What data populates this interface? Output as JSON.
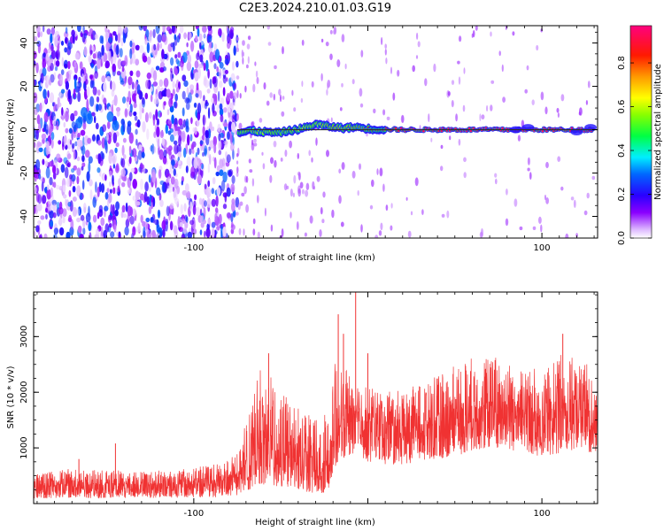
{
  "figure_title": "C2E3.2024.210.01.03.G19",
  "colors": {
    "snr_line": "#f03232",
    "dominant_line": "#303030",
    "axis": "#000000"
  },
  "chart_data": [
    {
      "type": "heatmap",
      "title": "C2E3.2024.210.01.03.G19",
      "xlabel": "Height of straight line (km)",
      "ylabel": "Frequency (Hz)",
      "xlim": [
        -192,
        132
      ],
      "ylim": [
        -50,
        48
      ],
      "xticks": [
        -100,
        0,
        100
      ],
      "xtick_labels": [
        "-100",
        "",
        "100"
      ],
      "yticks": [
        -40,
        -20,
        0,
        20,
        40
      ],
      "ytick_labels": [
        "-40",
        "-20",
        "0",
        "20",
        "40"
      ],
      "grid": false,
      "colorbar": {
        "label": "Normalized spectral amplitude",
        "range": [
          0,
          0.97
        ],
        "ticks": [
          0.0,
          0.2,
          0.4,
          0.6,
          0.8
        ],
        "tick_labels": [
          "0.0",
          "0.2",
          "0.4",
          "0.6",
          "0.8"
        ],
        "colormap": "gist_rainbow_r"
      },
      "dominant_frequency_hz": 0,
      "signal_track": [
        {
          "x": -74,
          "y": -1.5,
          "amp": 0.55
        },
        {
          "x": -68,
          "y": -0.5,
          "amp": 0.7
        },
        {
          "x": -60,
          "y": -1.0,
          "amp": 0.6
        },
        {
          "x": -52,
          "y": -1.5,
          "amp": 0.55
        },
        {
          "x": -45,
          "y": -0.5,
          "amp": 0.6
        },
        {
          "x": -38,
          "y": 0.5,
          "amp": 0.65
        },
        {
          "x": -30,
          "y": 2.5,
          "amp": 0.6
        },
        {
          "x": -22,
          "y": 1.5,
          "amp": 0.75
        },
        {
          "x": -14,
          "y": 0.8,
          "amp": 0.7
        },
        {
          "x": -6,
          "y": 1.2,
          "amp": 0.75
        },
        {
          "x": 2,
          "y": 0.3,
          "amp": 0.85
        },
        {
          "x": 20,
          "y": 0,
          "amp": 0.95
        },
        {
          "x": 60,
          "y": 0,
          "amp": 0.95
        },
        {
          "x": 90,
          "y": 0,
          "amp": 0.95
        },
        {
          "x": 130,
          "y": 0,
          "amp": 0.95
        }
      ],
      "noise_region": {
        "x_from": -192,
        "x_to": -75,
        "amp_min": 0.02,
        "amp_max": 0.3
      }
    },
    {
      "type": "line",
      "xlabel": "Height of straight line (km)",
      "ylabel": "SNR (10 * v/v)",
      "xlim": [
        -192,
        132
      ],
      "ylim": [
        0,
        3800
      ],
      "xticks": [
        -100,
        0,
        100
      ],
      "xtick_labels": [
        "-100",
        "",
        "100"
      ],
      "yticks": [
        1000,
        2000,
        3000
      ],
      "ytick_labels": [
        "1000",
        "2000",
        "3000"
      ],
      "grid": false,
      "series": [
        {
          "x": [
            -192,
            -180,
            -170,
            -160,
            -150,
            -140,
            -130,
            -120,
            -110,
            -100,
            -90,
            -80,
            -75,
            -68,
            -62,
            -56,
            -50,
            -45,
            -40,
            -35,
            -30,
            -26,
            -22,
            -18,
            -14,
            -10,
            -5,
            0,
            10,
            20,
            30,
            40,
            50,
            60,
            70,
            80,
            90,
            100,
            110,
            120,
            132
          ],
          "y": [
            300,
            320,
            340,
            330,
            350,
            340,
            330,
            360,
            340,
            350,
            380,
            420,
            500,
            800,
            1200,
            1100,
            900,
            800,
            700,
            650,
            600,
            550,
            700,
            1300,
            1500,
            1600,
            1500,
            1450,
            1400,
            1350,
            1400,
            1450,
            1550,
            1700,
            1750,
            1700,
            1600,
            1550,
            1650,
            1700,
            1550
          ],
          "env_low": [
            80,
            90,
            100,
            90,
            100,
            100,
            90,
            100,
            100,
            100,
            110,
            120,
            150,
            250,
            350,
            320,
            300,
            260,
            230,
            200,
            180,
            170,
            300,
            700,
            800,
            850,
            800,
            750,
            700,
            700,
            750,
            800,
            850,
            950,
            1000,
            950,
            900,
            850,
            900,
            950,
            850
          ],
          "env_high": [
            550,
            580,
            650,
            600,
            620,
            600,
            580,
            620,
            600,
            650,
            700,
            800,
            900,
            1700,
            2500,
            2300,
            2000,
            1900,
            1800,
            1700,
            1700,
            1500,
            2300,
            2600,
            2400,
            2400,
            2200,
            2100,
            2000,
            2050,
            2150,
            2300,
            2500,
            2650,
            2700,
            2600,
            2400,
            2450,
            2700,
            2600,
            2400
          ],
          "spikes": [
            {
              "x": -166,
              "y": 800
            },
            {
              "x": -145,
              "y": 1080
            },
            {
              "x": -57,
              "y": 2700
            },
            {
              "x": -17,
              "y": 3400
            },
            {
              "x": -14,
              "y": 3050
            },
            {
              "x": -7,
              "y": 3850
            },
            {
              "x": 112,
              "y": 3050
            },
            {
              "x": 0,
              "y": 2700
            }
          ]
        }
      ]
    }
  ]
}
